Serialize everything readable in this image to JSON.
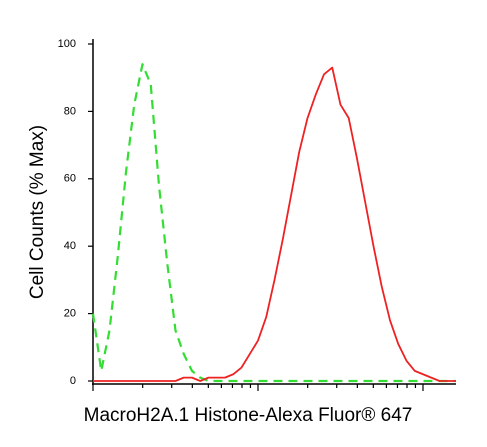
{
  "chart_data": {
    "type": "line",
    "y_label": "Cell Counts (% Max)",
    "x_label": "MacroH2A.1 Histone-Alexa Fluor® 647",
    "x": [
      1,
      1.122,
      1.259,
      1.413,
      1.585,
      1.778,
      1.995,
      2.239,
      2.512,
      2.818,
      3.162,
      3.548,
      3.981,
      4.467,
      5.012,
      5.623,
      6.31,
      7.079,
      7.943,
      8.913,
      10,
      11.22,
      12.59,
      14.13,
      15.85,
      17.78,
      19.95,
      22.39,
      25.12,
      28.18,
      31.62,
      35.48,
      39.81,
      44.67,
      50.12,
      56.23,
      63.1,
      70.79,
      79.43,
      89.13,
      100,
      112.2,
      125.9,
      141.3,
      158.5
    ],
    "series": [
      {
        "color": "#33dd33",
        "dashed": true,
        "values": [
          20,
          3,
          15,
          37,
          62,
          82,
          94,
          88,
          58,
          35,
          15,
          8,
          3,
          1,
          0,
          0,
          0,
          0,
          0,
          0,
          0,
          0,
          0,
          0,
          0,
          0,
          0,
          0,
          0,
          0,
          0,
          0,
          0,
          0,
          0,
          0,
          0,
          0,
          0,
          0,
          0,
          0,
          0,
          0,
          0
        ]
      },
      {
        "color": "#ee2222",
        "dashed": false,
        "values": [
          0,
          0,
          0,
          0,
          0,
          0,
          0,
          0,
          0,
          0,
          0,
          1,
          1,
          0,
          1,
          1,
          1,
          2,
          4,
          8,
          12,
          19,
          30,
          42,
          55,
          68,
          78,
          85,
          91,
          93,
          82,
          78,
          66,
          53,
          40,
          28,
          18,
          11,
          6,
          3,
          2,
          1,
          0,
          0,
          0
        ]
      }
    ],
    "xscale": "log",
    "xlim": [
      1,
      158.5
    ],
    "xticks": [
      1,
      2,
      3,
      4,
      5,
      6,
      7,
      8,
      9,
      10,
      20,
      30,
      40,
      50,
      60,
      70,
      80,
      90,
      100
    ],
    "ylim": [
      0,
      100
    ],
    "yticks": [
      0,
      20,
      40,
      60,
      80,
      100
    ]
  }
}
